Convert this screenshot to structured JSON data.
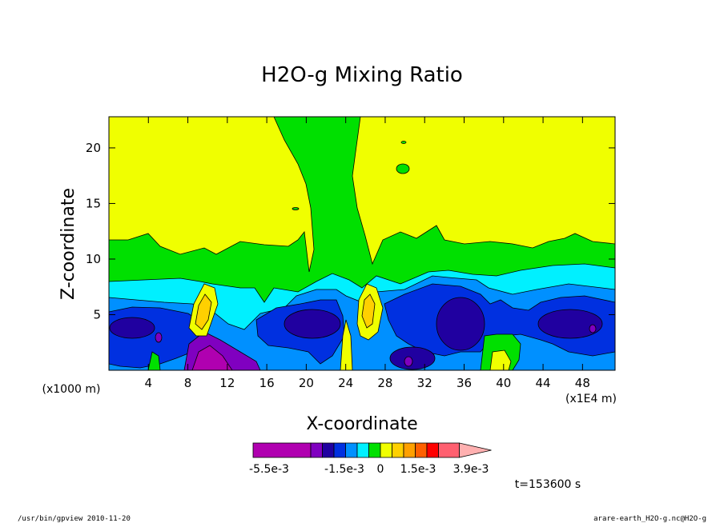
{
  "chart_data": {
    "type": "heatmap",
    "title": "H2O-g Mixing Ratio",
    "xlabel": "X-coordinate",
    "ylabel": "Z-coordinate",
    "x_unit_left": "(x1000 m)",
    "x_unit_right": "(x1E4 m)",
    "x_ticks": [
      4,
      8,
      12,
      16,
      20,
      24,
      28,
      32,
      36,
      40,
      44,
      48
    ],
    "y_ticks": [
      5,
      10,
      15,
      20
    ],
    "xlim": [
      0,
      51.3
    ],
    "ylim": [
      0,
      22.8
    ],
    "colorbar": {
      "colors": [
        "#b000b0",
        "#8000c0",
        "#2000a0",
        "#0030e0",
        "#0090ff",
        "#00f0ff",
        "#00e000",
        "#f0ff00",
        "#ffd000",
        "#ffa000",
        "#ff6000",
        "#ff0000",
        "#ff6070",
        "#ffb0b0"
      ],
      "labels": [
        "-5.5e-3",
        "-1.5e-3",
        "0",
        "1.5e-3",
        "3.9e-3"
      ]
    },
    "time_label": "t=153600 s",
    "footer_left": "/usr/bin/gpview  2010-11-20",
    "footer_right": "arare-earth_H2O-g.nc@H2O-g",
    "grid": false
  }
}
